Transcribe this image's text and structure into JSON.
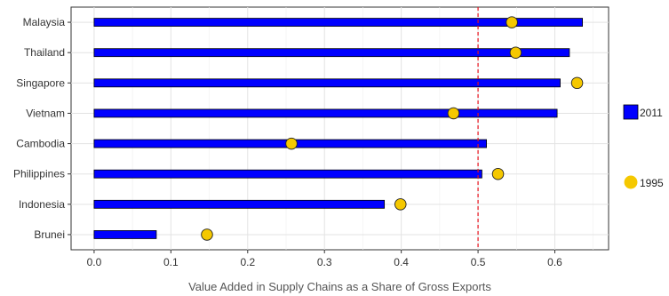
{
  "chart_data": {
    "type": "bar",
    "orientation": "horizontal",
    "title": "",
    "xlabel": "Value Added in Supply Chains as a Share of Gross Exports",
    "ylabel": "",
    "xlim": [
      -0.03,
      0.67
    ],
    "xticks": [
      "0.0",
      "0.1",
      "0.2",
      "0.3",
      "0.4",
      "0.5",
      "0.6"
    ],
    "reference_line": {
      "x": 0.5,
      "color": "#e8101a",
      "style": "dashed"
    },
    "grid": true,
    "legend_position": "right",
    "categories": [
      "Malaysia",
      "Thailand",
      "Singapore",
      "Vietnam",
      "Cambodia",
      "Philippines",
      "Indonesia",
      "Brunei"
    ],
    "series": [
      {
        "name": "2011",
        "mark": "bar",
        "color": "#0000ff",
        "values": [
          0.636,
          0.619,
          0.607,
          0.603,
          0.511,
          0.505,
          0.378,
          0.081
        ]
      },
      {
        "name": "1995",
        "mark": "point",
        "color": "#f5c800",
        "values": [
          0.544,
          0.549,
          0.629,
          0.468,
          0.257,
          0.526,
          0.399,
          0.147
        ]
      }
    ]
  }
}
